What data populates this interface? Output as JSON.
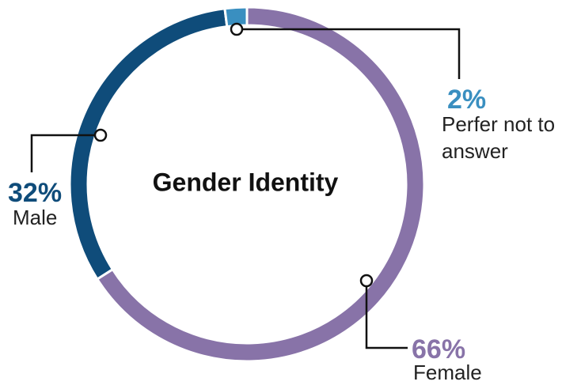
{
  "chart_data": {
    "type": "pie",
    "title": "Gender Identity",
    "categories": [
      "Female",
      "Male",
      "Perfer not to answer"
    ],
    "values": [
      66,
      32,
      2
    ],
    "value_labels": [
      "66%",
      "32%",
      "2%"
    ],
    "colors": [
      "#8873a8",
      "#0f4c7a",
      "#3a8fc0"
    ]
  }
}
